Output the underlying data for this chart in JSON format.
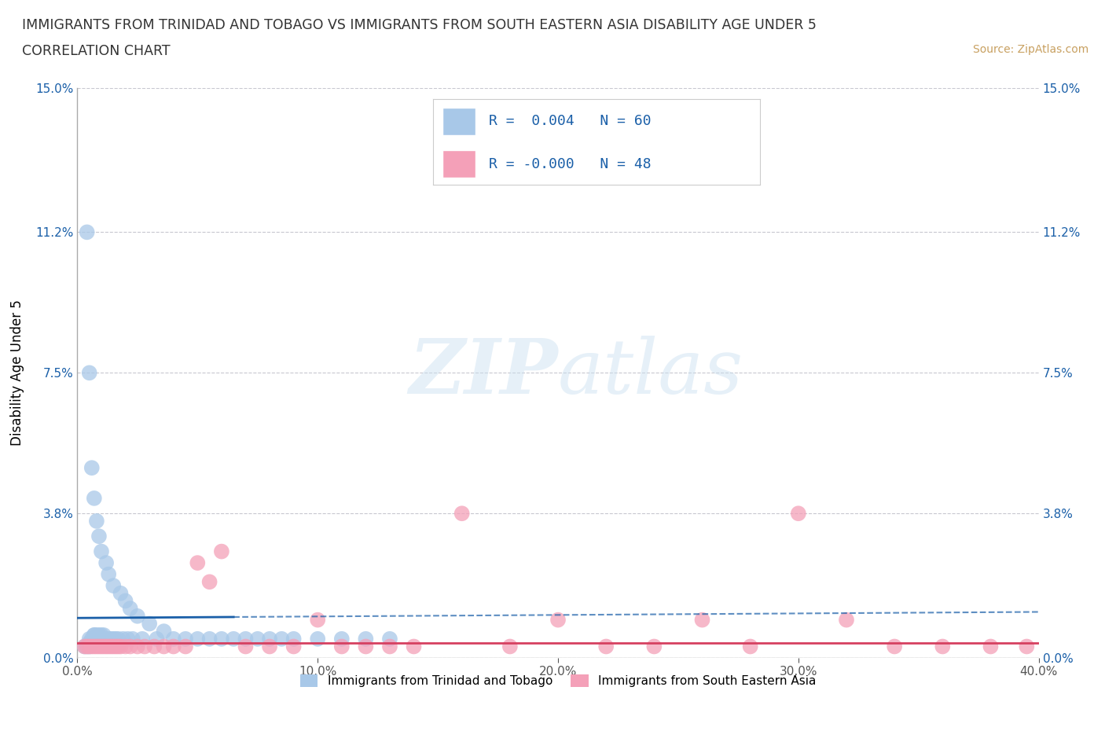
{
  "title_line1": "IMMIGRANTS FROM TRINIDAD AND TOBAGO VS IMMIGRANTS FROM SOUTH EASTERN ASIA DISABILITY AGE UNDER 5",
  "title_line2": "CORRELATION CHART",
  "source_text": "Source: ZipAtlas.com",
  "ylabel": "Disability Age Under 5",
  "xlim": [
    0.0,
    0.4
  ],
  "ylim": [
    0.0,
    0.15
  ],
  "yticks": [
    0.0,
    0.038,
    0.075,
    0.112,
    0.15
  ],
  "ytick_labels": [
    "0.0%",
    "3.8%",
    "7.5%",
    "11.2%",
    "15.0%"
  ],
  "xticks": [
    0.0,
    0.1,
    0.2,
    0.3,
    0.4
  ],
  "xtick_labels": [
    "0.0%",
    "10.0%",
    "20.0%",
    "30.0%",
    "40.0%"
  ],
  "blue_color": "#a8c8e8",
  "pink_color": "#f4a0b8",
  "blue_line_color": "#1a5fa8",
  "pink_line_color": "#d64060",
  "blue_line_style": "-",
  "pink_line_style": "-",
  "grid_color": "#c8c8d0",
  "background_color": "#ffffff",
  "watermark_text": "ZIPatlas",
  "legend_r_blue": "R =  0.004",
  "legend_n_blue": "N = 60",
  "legend_r_pink": "R = -0.000",
  "legend_n_pink": "N = 48",
  "legend_label_blue": "Immigrants from Trinidad and Tobago",
  "legend_label_pink": "Immigrants from South Eastern Asia",
  "blue_x": [
    0.003,
    0.004,
    0.004,
    0.005,
    0.005,
    0.005,
    0.005,
    0.006,
    0.006,
    0.006,
    0.007,
    0.007,
    0.007,
    0.007,
    0.008,
    0.008,
    0.008,
    0.009,
    0.009,
    0.009,
    0.01,
    0.01,
    0.01,
    0.011,
    0.011,
    0.012,
    0.012,
    0.013,
    0.013,
    0.014,
    0.015,
    0.015,
    0.016,
    0.017,
    0.018,
    0.019,
    0.02,
    0.021,
    0.022,
    0.023,
    0.025,
    0.027,
    0.03,
    0.033,
    0.036,
    0.04,
    0.045,
    0.05,
    0.055,
    0.06,
    0.065,
    0.07,
    0.075,
    0.08,
    0.085,
    0.09,
    0.1,
    0.11,
    0.12,
    0.13
  ],
  "blue_y": [
    0.003,
    0.112,
    0.003,
    0.003,
    0.004,
    0.075,
    0.005,
    0.004,
    0.05,
    0.005,
    0.005,
    0.006,
    0.042,
    0.006,
    0.005,
    0.006,
    0.036,
    0.005,
    0.006,
    0.032,
    0.005,
    0.006,
    0.028,
    0.005,
    0.006,
    0.005,
    0.025,
    0.005,
    0.022,
    0.005,
    0.005,
    0.019,
    0.005,
    0.005,
    0.017,
    0.005,
    0.015,
    0.005,
    0.013,
    0.005,
    0.011,
    0.005,
    0.009,
    0.005,
    0.007,
    0.005,
    0.005,
    0.005,
    0.005,
    0.005,
    0.005,
    0.005,
    0.005,
    0.005,
    0.005,
    0.005,
    0.005,
    0.005,
    0.005,
    0.005
  ],
  "pink_x": [
    0.003,
    0.004,
    0.005,
    0.006,
    0.007,
    0.008,
    0.009,
    0.01,
    0.011,
    0.012,
    0.013,
    0.014,
    0.015,
    0.016,
    0.017,
    0.018,
    0.02,
    0.022,
    0.025,
    0.028,
    0.032,
    0.036,
    0.04,
    0.045,
    0.05,
    0.055,
    0.06,
    0.07,
    0.08,
    0.09,
    0.1,
    0.11,
    0.12,
    0.13,
    0.14,
    0.16,
    0.18,
    0.2,
    0.22,
    0.24,
    0.26,
    0.28,
    0.3,
    0.32,
    0.34,
    0.36,
    0.38,
    0.395
  ],
  "pink_y": [
    0.003,
    0.003,
    0.003,
    0.003,
    0.003,
    0.003,
    0.003,
    0.003,
    0.003,
    0.003,
    0.003,
    0.003,
    0.003,
    0.003,
    0.003,
    0.003,
    0.003,
    0.003,
    0.003,
    0.003,
    0.003,
    0.003,
    0.003,
    0.003,
    0.025,
    0.02,
    0.028,
    0.003,
    0.003,
    0.003,
    0.01,
    0.003,
    0.003,
    0.003,
    0.003,
    0.038,
    0.003,
    0.01,
    0.003,
    0.003,
    0.01,
    0.003,
    0.038,
    0.01,
    0.003,
    0.003,
    0.003,
    0.003
  ],
  "blue_reg_slope": 0.004,
  "blue_reg_intercept": 0.0105,
  "pink_reg_slope": 0.0,
  "pink_reg_intercept": 0.004
}
